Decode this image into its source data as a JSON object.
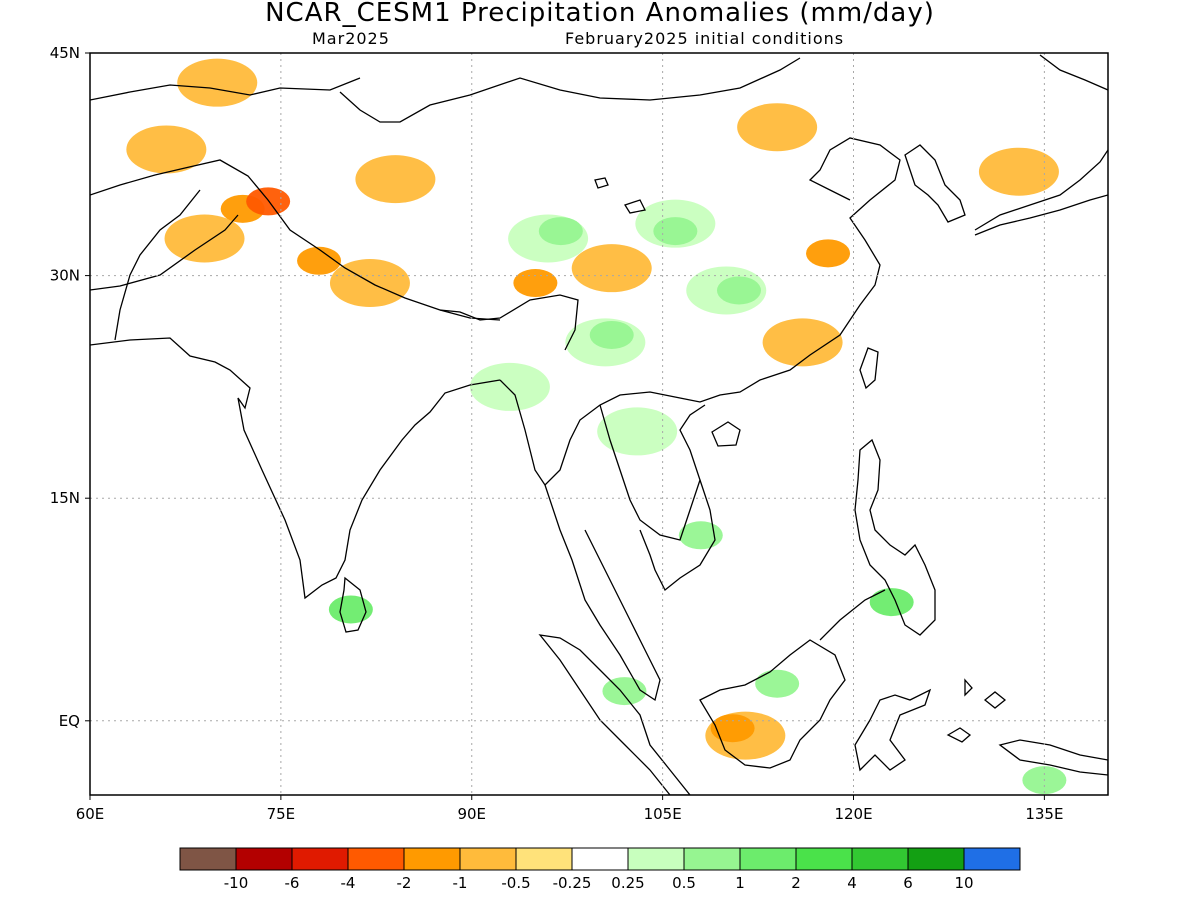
{
  "title": "NCAR_CESM1 Precipitation Anomalies (mm/day)",
  "subtitle_left": "Mar2025",
  "subtitle_right": "February2025 initial conditions",
  "map": {
    "lon_range": [
      60,
      140
    ],
    "lat_range": [
      -5,
      45
    ],
    "lon_ticks": [
      {
        "value": 60,
        "label": "60E"
      },
      {
        "value": 75,
        "label": "75E"
      },
      {
        "value": 90,
        "label": "90E"
      },
      {
        "value": 105,
        "label": "105E"
      },
      {
        "value": 120,
        "label": "120E"
      },
      {
        "value": 135,
        "label": "135E"
      }
    ],
    "lat_ticks": [
      {
        "value": 45,
        "label": "45N"
      },
      {
        "value": 30,
        "label": "30N"
      },
      {
        "value": 15,
        "label": "15N"
      },
      {
        "value": 0,
        "label": "EQ"
      }
    ],
    "gridlines": true,
    "anomaly_regions": [
      {
        "lon": 66,
        "lat": 38.5,
        "level": "-0.5"
      },
      {
        "lon": 69,
        "lat": 32.5,
        "level": "-0.5"
      },
      {
        "lon": 72,
        "lat": 34.5,
        "level": "-1"
      },
      {
        "lon": 74,
        "lat": 35,
        "level": "-2"
      },
      {
        "lon": 78,
        "lat": 31,
        "level": "-1"
      },
      {
        "lon": 82,
        "lat": 29.5,
        "level": "-0.5"
      },
      {
        "lon": 70,
        "lat": 43,
        "level": "-0.5"
      },
      {
        "lon": 84,
        "lat": 36.5,
        "level": "-0.5"
      },
      {
        "lon": 95,
        "lat": 29.5,
        "level": "-1"
      },
      {
        "lon": 101,
        "lat": 30.5,
        "level": "-0.5"
      },
      {
        "lon": 114,
        "lat": 40,
        "level": "-0.5"
      },
      {
        "lon": 118,
        "lat": 31.5,
        "level": "-1"
      },
      {
        "lon": 116,
        "lat": 25.5,
        "level": "-0.5"
      },
      {
        "lon": 111.5,
        "lat": -1,
        "level": "-0.5"
      },
      {
        "lon": 110.5,
        "lat": -0.5,
        "level": "-1"
      },
      {
        "lon": 133,
        "lat": 37,
        "level": "-0.5"
      },
      {
        "lon": 96,
        "lat": 32.5,
        "level": "0.25"
      },
      {
        "lon": 97,
        "lat": 33,
        "level": "0.5"
      },
      {
        "lon": 106,
        "lat": 33.5,
        "level": "0.25"
      },
      {
        "lon": 106,
        "lat": 33,
        "level": "0.5"
      },
      {
        "lon": 110,
        "lat": 29,
        "level": "0.25"
      },
      {
        "lon": 111,
        "lat": 29,
        "level": "0.5"
      },
      {
        "lon": 100.5,
        "lat": 25.5,
        "level": "0.25"
      },
      {
        "lon": 101,
        "lat": 26,
        "level": "0.5"
      },
      {
        "lon": 103,
        "lat": 19.5,
        "level": "0.25"
      },
      {
        "lon": 93,
        "lat": 22.5,
        "level": "0.25"
      },
      {
        "lon": 108,
        "lat": 12.5,
        "level": "0.5"
      },
      {
        "lon": 102,
        "lat": 2,
        "level": "0.5"
      },
      {
        "lon": 114,
        "lat": 2.5,
        "level": "0.5"
      },
      {
        "lon": 135,
        "lat": -4,
        "level": "0.5"
      },
      {
        "lon": 80.5,
        "lat": 7.5,
        "level": "1"
      },
      {
        "lon": 123,
        "lat": 8,
        "level": "1"
      }
    ]
  },
  "colorbar": {
    "colors": [
      "#7f5545",
      "#b30000",
      "#e01a00",
      "#ff5a00",
      "#ff9a00",
      "#ffbb3b",
      "#ffe27a",
      "#ffffff",
      "#c8ffbe",
      "#96f591",
      "#6cec6c",
      "#4ae24a",
      "#32c832",
      "#13a013",
      "#1f6fe6"
    ],
    "labels": [
      "-10",
      "-6",
      "-4",
      "-2",
      "-1",
      "-0.5",
      "-0.25",
      "0.25",
      "0.5",
      "1",
      "2",
      "4",
      "6",
      "10"
    ]
  }
}
